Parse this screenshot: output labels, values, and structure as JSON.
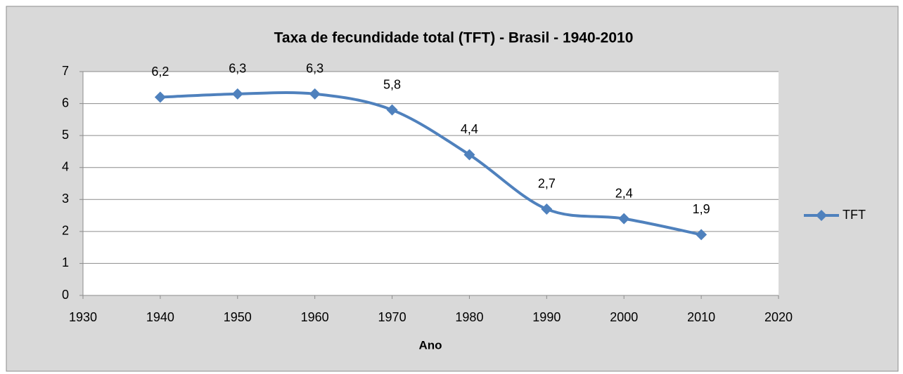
{
  "chart_data": {
    "type": "line",
    "title": "Taxa de fecundidade total (TFT) - Brasil - 1940-2010",
    "x_label": "Ano",
    "x": [
      1940,
      1950,
      1960,
      1970,
      1980,
      1990,
      2000,
      2010
    ],
    "series": [
      {
        "name": "TFT",
        "color": "#4f81bd",
        "values": [
          6.2,
          6.3,
          6.3,
          5.8,
          4.4,
          2.7,
          2.4,
          1.9
        ],
        "value_labels": [
          "6,2",
          "6,3",
          "6,3",
          "5,8",
          "4,4",
          "2,7",
          "2,4",
          "1,9"
        ]
      }
    ],
    "xlim": [
      1930,
      2020
    ],
    "xticks": [
      1930,
      1940,
      1950,
      1960,
      1970,
      1980,
      1990,
      2000,
      2010,
      2020
    ],
    "ylim": [
      0,
      7
    ],
    "yticks": [
      0,
      1,
      2,
      3,
      4,
      5,
      6,
      7
    ],
    "grid": true,
    "smooth": true,
    "legend": "right"
  }
}
